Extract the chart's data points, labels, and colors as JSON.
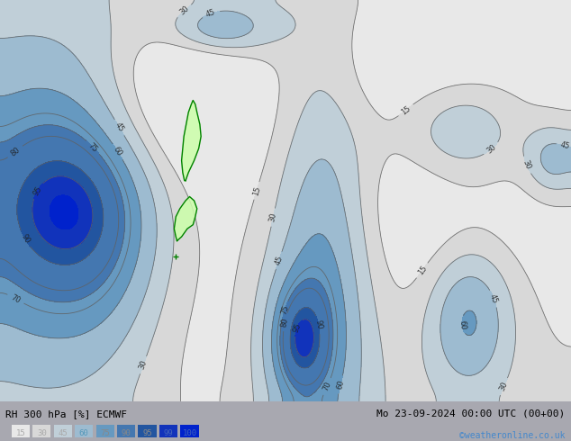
{
  "title_left": "RH 300 hPa [%] ECMWF",
  "title_right": "Mo 23-09-2024 00:00 UTC (00+00)",
  "credit": "©weatheronline.co.uk",
  "legend_values": [
    15,
    30,
    45,
    60,
    75,
    90,
    95,
    99,
    100
  ],
  "colormap_levels": [
    0,
    15,
    30,
    45,
    60,
    75,
    90,
    95,
    99,
    101
  ],
  "colormap_colors": [
    "#e8e8e8",
    "#d8d8d8",
    "#c0cfd8",
    "#9dbbd0",
    "#6699c0",
    "#4477b0",
    "#2255a0",
    "#1133bb",
    "#0022cc"
  ],
  "legend_text_colors": [
    "#aaaaaa",
    "#aaaaaa",
    "#aaaaaa",
    "#5599bb",
    "#888888",
    "#888888",
    "#888888",
    "#4466bb",
    "#4466bb"
  ],
  "contour_levels": [
    15,
    30,
    45,
    60,
    70,
    75,
    80,
    90,
    95
  ],
  "contour_color": "#606060",
  "bg_color": "#a8a8b0",
  "fig_width": 6.34,
  "fig_height": 4.9,
  "dpi": 100
}
